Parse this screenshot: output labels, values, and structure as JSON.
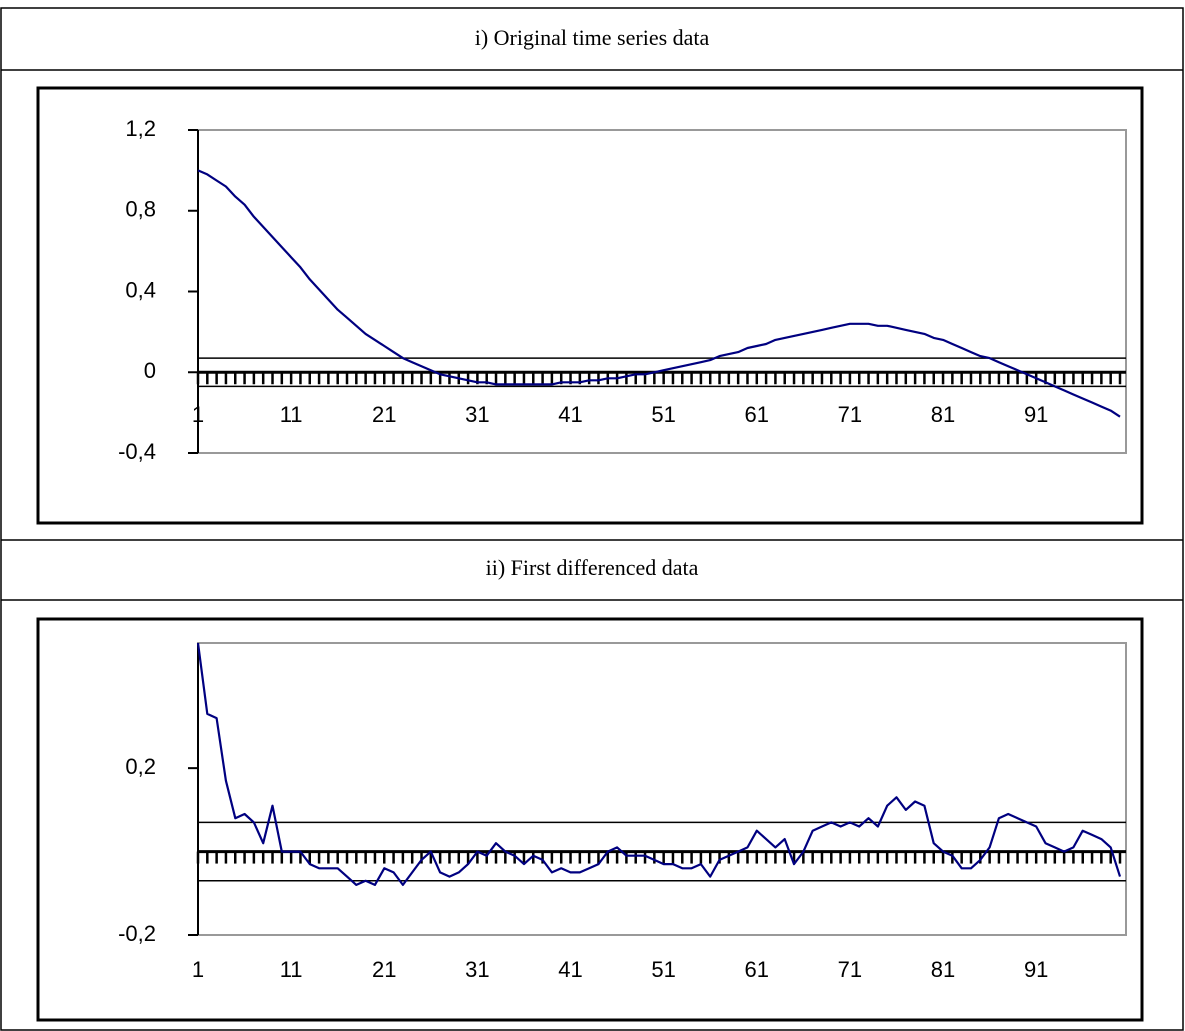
{
  "chart_data": [
    {
      "type": "line",
      "title": "i) Original time series data",
      "x": [
        1,
        2,
        3,
        4,
        5,
        6,
        7,
        8,
        9,
        10,
        11,
        12,
        13,
        14,
        15,
        16,
        17,
        18,
        19,
        20,
        21,
        22,
        23,
        24,
        25,
        26,
        27,
        28,
        29,
        30,
        31,
        32,
        33,
        34,
        35,
        36,
        37,
        38,
        39,
        40,
        41,
        42,
        43,
        44,
        45,
        46,
        47,
        48,
        49,
        50,
        51,
        52,
        53,
        54,
        55,
        56,
        57,
        58,
        59,
        60,
        61,
        62,
        63,
        64,
        65,
        66,
        67,
        68,
        69,
        70,
        71,
        72,
        73,
        74,
        75,
        76,
        77,
        78,
        79,
        80,
        81,
        82,
        83,
        84,
        85,
        86,
        87,
        88,
        89,
        90,
        91,
        92,
        93,
        94,
        95,
        96,
        97,
        98,
        99,
        100
      ],
      "series": [
        {
          "color": "#000080",
          "values": [
            1.0,
            0.98,
            0.95,
            0.92,
            0.87,
            0.83,
            0.77,
            0.72,
            0.67,
            0.62,
            0.57,
            0.52,
            0.46,
            0.41,
            0.36,
            0.31,
            0.27,
            0.23,
            0.19,
            0.16,
            0.13,
            0.1,
            0.07,
            0.05,
            0.03,
            0.01,
            -0.01,
            -0.02,
            -0.03,
            -0.04,
            -0.05,
            -0.05,
            -0.06,
            -0.06,
            -0.06,
            -0.06,
            -0.06,
            -0.06,
            -0.06,
            -0.05,
            -0.05,
            -0.05,
            -0.04,
            -0.04,
            -0.03,
            -0.03,
            -0.02,
            -0.01,
            -0.01,
            0.0,
            0.01,
            0.02,
            0.03,
            0.04,
            0.05,
            0.06,
            0.08,
            0.09,
            0.1,
            0.12,
            0.13,
            0.14,
            0.16,
            0.17,
            0.18,
            0.19,
            0.2,
            0.21,
            0.22,
            0.23,
            0.24,
            0.24,
            0.24,
            0.23,
            0.23,
            0.22,
            0.21,
            0.2,
            0.19,
            0.17,
            0.16,
            0.14,
            0.12,
            0.1,
            0.08,
            0.07,
            0.05,
            0.03,
            0.01,
            -0.01,
            -0.03,
            -0.05,
            -0.07,
            -0.09,
            -0.11,
            -0.13,
            -0.15,
            -0.17,
            -0.19,
            -0.22
          ]
        }
      ],
      "reference_lines": [
        0.07,
        -0.07
      ],
      "xlim": [
        1,
        100
      ],
      "xticks": [
        1,
        11,
        21,
        31,
        41,
        51,
        61,
        71,
        81,
        91
      ],
      "xlabel_position": "axis",
      "ylim": [
        -0.4,
        1.2
      ],
      "yticks": [
        {
          "value": -0.4,
          "label": "-0,4"
        },
        0,
        {
          "value": 0.4,
          "label": "0,4"
        },
        {
          "value": 0.8,
          "label": "0,8"
        },
        {
          "value": 1.2,
          "label": "1,2"
        }
      ]
    },
    {
      "type": "line",
      "title": "ii) First differenced data",
      "x": [
        1,
        2,
        3,
        4,
        5,
        6,
        7,
        8,
        9,
        10,
        11,
        12,
        13,
        14,
        15,
        16,
        17,
        18,
        19,
        20,
        21,
        22,
        23,
        24,
        25,
        26,
        27,
        28,
        29,
        30,
        31,
        32,
        33,
        34,
        35,
        36,
        37,
        38,
        39,
        40,
        41,
        42,
        43,
        44,
        45,
        46,
        47,
        48,
        49,
        50,
        51,
        52,
        53,
        54,
        55,
        56,
        57,
        58,
        59,
        60,
        61,
        62,
        63,
        64,
        65,
        66,
        67,
        68,
        69,
        70,
        71,
        72,
        73,
        74,
        75,
        76,
        77,
        78,
        79,
        80,
        81,
        82,
        83,
        84,
        85,
        86,
        87,
        88,
        89,
        90,
        91,
        92,
        93,
        94,
        95,
        96,
        97,
        98,
        99,
        100
      ],
      "series": [
        {
          "color": "#000080",
          "values": [
            0.5,
            0.33,
            0.32,
            0.17,
            0.08,
            0.09,
            0.07,
            0.02,
            0.11,
            0.0,
            0.0,
            0.0,
            -0.03,
            -0.04,
            -0.04,
            -0.04,
            -0.06,
            -0.08,
            -0.07,
            -0.08,
            -0.04,
            -0.05,
            -0.08,
            -0.05,
            -0.02,
            0.0,
            -0.05,
            -0.06,
            -0.05,
            -0.03,
            0.0,
            -0.01,
            0.02,
            0.0,
            -0.01,
            -0.03,
            -0.01,
            -0.02,
            -0.05,
            -0.04,
            -0.05,
            -0.05,
            -0.04,
            -0.03,
            0.0,
            0.01,
            -0.01,
            -0.01,
            -0.01,
            -0.02,
            -0.03,
            -0.03,
            -0.04,
            -0.04,
            -0.03,
            -0.06,
            -0.02,
            -0.01,
            0.0,
            0.01,
            0.05,
            0.03,
            0.01,
            0.03,
            -0.03,
            0.0,
            0.05,
            0.06,
            0.07,
            0.06,
            0.07,
            0.06,
            0.08,
            0.06,
            0.11,
            0.13,
            0.1,
            0.12,
            0.11,
            0.02,
            0.0,
            -0.01,
            -0.04,
            -0.04,
            -0.02,
            0.01,
            0.08,
            0.09,
            0.08,
            0.07,
            0.06,
            0.02,
            0.01,
            0.0,
            0.01,
            0.05,
            0.04,
            0.03,
            0.01,
            -0.06
          ]
        }
      ],
      "reference_lines": [
        0.07,
        -0.07
      ],
      "xlim": [
        1,
        100
      ],
      "xticks": [
        1,
        11,
        21,
        31,
        41,
        51,
        61,
        71,
        81,
        91
      ],
      "xlabel_position": "bottom",
      "ylim": [
        -0.2,
        0.5
      ],
      "yticks": [
        {
          "value": -0.2,
          "label": "-0,2"
        },
        {
          "value": 0.2,
          "label": "0,2"
        }
      ]
    }
  ]
}
